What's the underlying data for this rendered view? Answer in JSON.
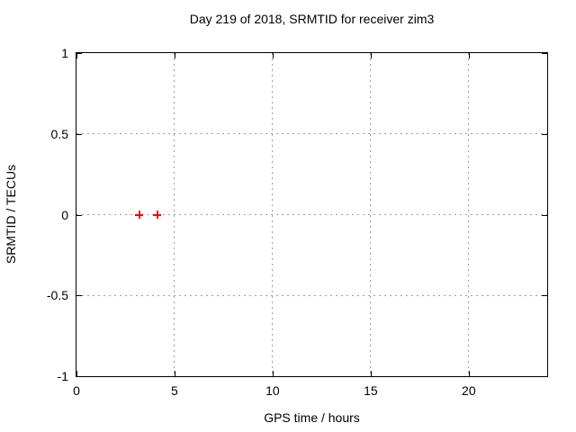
{
  "window": {
    "background": "#ffffff"
  },
  "chart_data": {
    "type": "scatter",
    "title": "Day 219 of 2018, SRMTID for receiver zim3",
    "xlabel": "GPS time / hours",
    "ylabel": "SRMTID / TECUs",
    "xlim": [
      0,
      24
    ],
    "ylim": [
      -1,
      1
    ],
    "xticks": [
      {
        "value": 0,
        "label": "0"
      },
      {
        "value": 5,
        "label": "5"
      },
      {
        "value": 10,
        "label": "10"
      },
      {
        "value": 15,
        "label": "15"
      },
      {
        "value": 20,
        "label": "20"
      }
    ],
    "yticks": [
      {
        "value": -1,
        "label": "-1"
      },
      {
        "value": -0.5,
        "label": "-0.5"
      },
      {
        "value": 0,
        "label": "0"
      },
      {
        "value": 0.5,
        "label": "0.5"
      },
      {
        "value": 1,
        "label": "1"
      }
    ],
    "grid": true,
    "legend": "none",
    "colors": {
      "axis": "#000000",
      "grid": "#9e9e9e",
      "text": "#000000"
    },
    "series": [
      {
        "name": "SRMTID",
        "marker": "plus",
        "color": "#ff0000",
        "points": [
          {
            "x": 3.2,
            "y": 0.0
          },
          {
            "x": 4.1,
            "y": 0.0
          }
        ]
      }
    ]
  }
}
